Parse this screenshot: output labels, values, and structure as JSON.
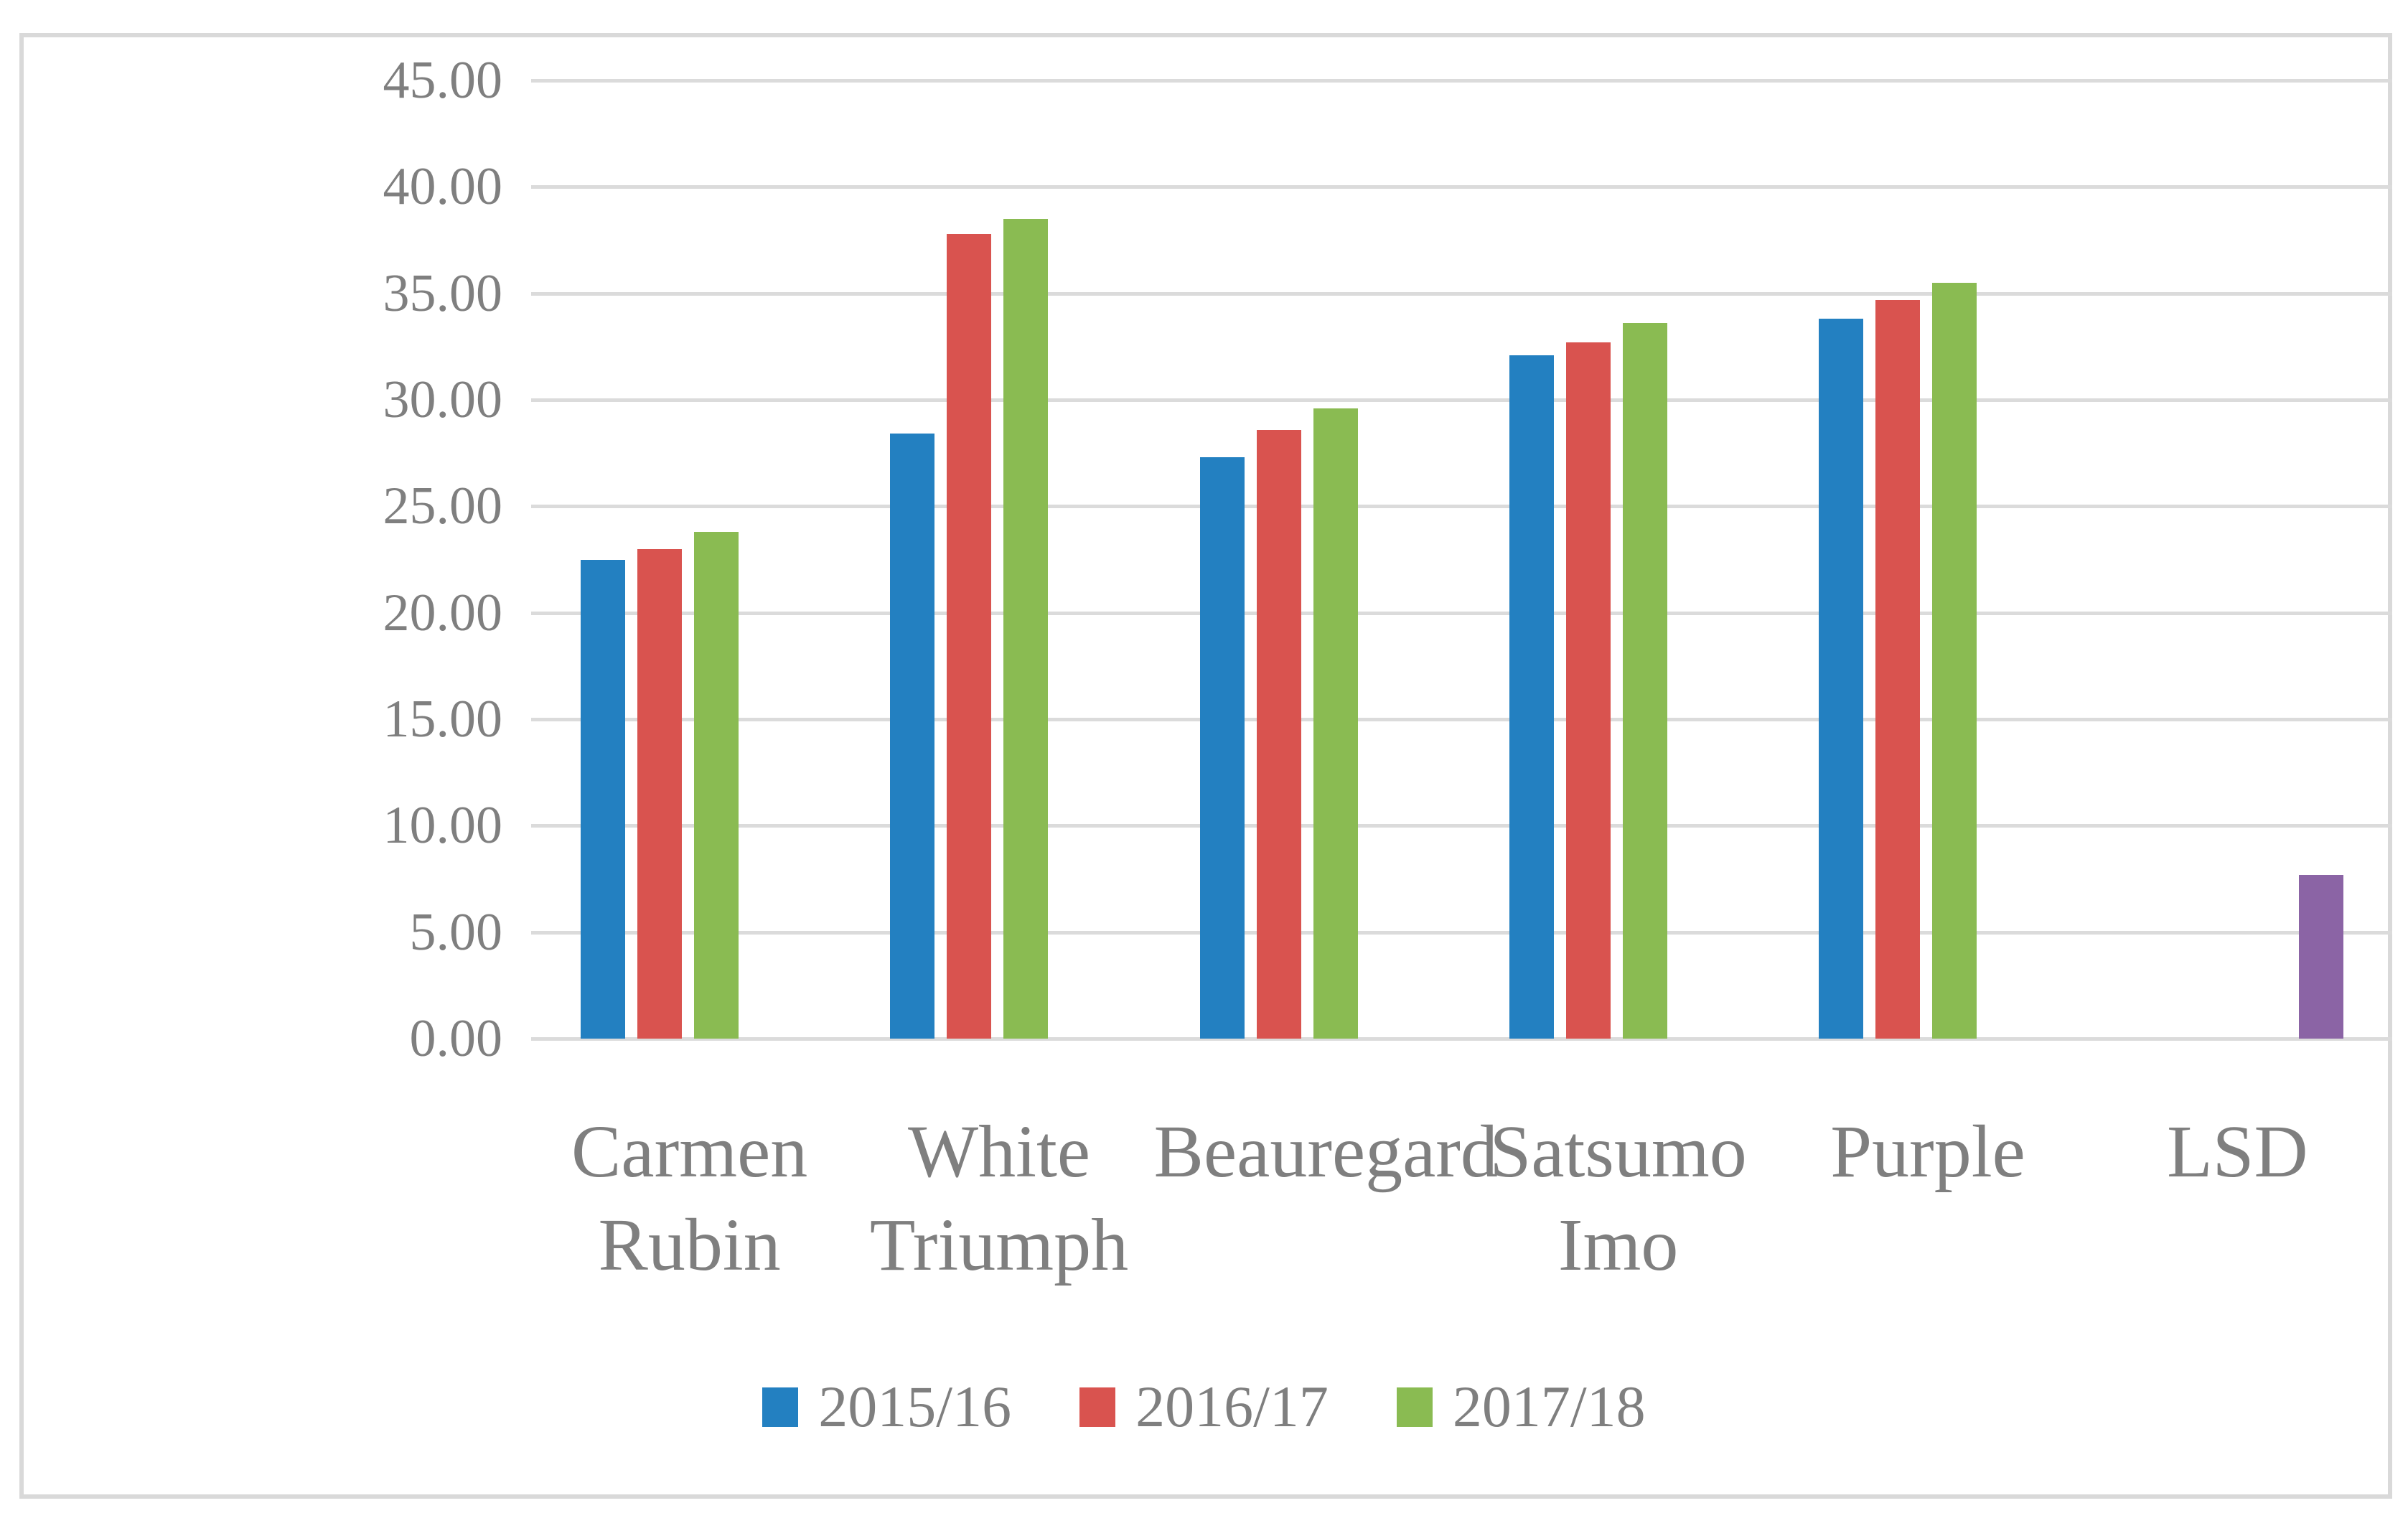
{
  "figure": {
    "background": "#FFFFFF",
    "border_color": "#D9D9D9",
    "gridline_color": "#DBDBDB",
    "text_color": "#7F7F7F"
  },
  "chart_data": {
    "type": "bar",
    "title": "",
    "xlabel": "",
    "ylabel": "",
    "categories": [
      "Carmen Rubin",
      "White Triumph",
      "Beauregard",
      "Satsumo Imo",
      "Purple",
      "LSD"
    ],
    "categories_display": [
      "Carmen\nRubin",
      "White\nTriumph",
      "Beauregard",
      "Satsumo\nImo",
      "Purple",
      "LSD"
    ],
    "series": [
      {
        "name": "2015/16",
        "color": "#2380C1",
        "in_legend": true,
        "values": [
          22.5,
          28.4,
          27.3,
          32.1,
          33.8,
          null
        ]
      },
      {
        "name": "2016/17",
        "color": "#D9534F",
        "in_legend": true,
        "values": [
          23.0,
          37.8,
          28.6,
          32.7,
          34.7,
          null
        ]
      },
      {
        "name": "2017/18",
        "color": "#8ABB52",
        "in_legend": true,
        "values": [
          23.8,
          38.5,
          29.6,
          33.6,
          35.5,
          null
        ]
      },
      {
        "name": "LSD",
        "color": "#8B64A5",
        "in_legend": false,
        "values": [
          null,
          null,
          null,
          null,
          null,
          7.7
        ]
      }
    ],
    "ylim": [
      0,
      45
    ],
    "ytick_step": 5,
    "ytick_labels": [
      "45.00",
      "40.00",
      "35.00",
      "30.00",
      "25.00",
      "20.00",
      "15.00",
      "10.00",
      "5.00",
      "0.00"
    ],
    "grid": true,
    "legend": {
      "position": "bottom-center",
      "entries": [
        "2015/16",
        "2016/17",
        "2017/18"
      ]
    }
  }
}
